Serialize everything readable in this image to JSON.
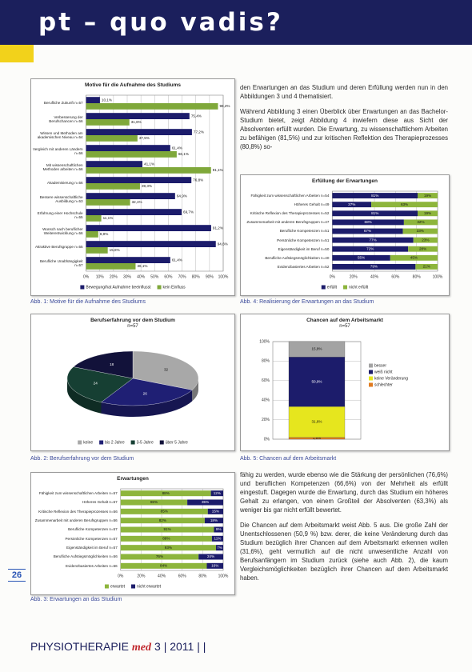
{
  "header": {
    "title": "pt – quo vadis?"
  },
  "text": {
    "intro": [
      "den Erwartungen an das Studium und deren Erfüllung werden nun in den Abbildungen 3 und 4 thematisiert.",
      "Während Abbildung 3 einen Überblick über Erwartungen an das Bachelor-Studium bietet, zeigt Abbildung 4 inwiefern diese aus Sicht der Absolventen erfüllt wurden. Die Erwartung, zu wissenschaftlichem Arbeiten zu befähigen (81,5%) und zur kritischen Reflektion des Therapieprozesses (80,8%) so-"
    ],
    "main": [
      "fähig zu werden, wurde ebenso wie die Stärkung der persönlichen (76,6%) und beruflichen Kompetenzen (66,6%) von der Mehrheit als erfüllt eingestuft. Dagegen wurde die Erwartung, durch das Studium ein höheres Gehalt zu erlangen, von einem Großteil der Absolventen (63,3%) als weniger bis gar nicht erfüllt bewertet.",
      "Die Chancen auf dem Arbeitsmarkt weist Abb. 5 aus. Die große Zahl der Unentschlossenen (50,9 %) bzw. derer, die keine Veränderung durch das Studium bezüglich ihrer Chancen auf dem Arbeitsmarkt erkennen wollen (31,6%), geht vermutlich auf die nicht unwesentliche Anzahl von Berufsanfängern im Studium zurück (siehe auch Abb. 2), die kaum Vergleichsmöglichkeiten bezüglich ihrer Chancen auf dem Arbeitsmarkt haben."
    ]
  },
  "page_number": "26",
  "footer": {
    "magazine": "PHYSIOTHERAPIE",
    "brand": "med",
    "issue": "3 | 2011 | |"
  },
  "chart_data": [
    {
      "type": "hbar",
      "title": "Motive für die Aufnahme des Studiums",
      "caption": "Abb. 1: Motive für die Aufnahme des Studiums",
      "categories": [
        "Berufliche Zukunft n=57",
        "Verbesserung der Berufschancen n=56",
        "Wissen und Methoden am akademischen Niveau n=54",
        "Vergleich mit anderen Ländern n=56",
        "Mit wissenschaftlichen Methoden arbeiten n=56",
        "Akademisierung n=56",
        "Bessere wissenschaftliche Ausbildung n=53",
        "Erfahrung einer Hochschule n=55",
        "Wunsch nach beruflicher Weiterentwicklung n=56",
        "Attraktive Berufsgruppe n=55",
        "Berufliche Unabhängigkeit n=57"
      ],
      "series": [
        {
          "name": "Bewegung/hat Aufnahme beeinflusst",
          "color": "#1c1c6b",
          "values": [
            10.1,
            75.4,
            77.2,
            61.4,
            41.1,
            76.8,
            64.9,
            69.7,
            91.2,
            94.6,
            61.4
          ],
          "value_labels": [
            "10,1%",
            "75,4%",
            "77,2%",
            "61,4%",
            "41,1%",
            "76,8%",
            "64,9%",
            "69,7%",
            "91,2%",
            "94,6%",
            "61,4%"
          ]
        },
        {
          "name": "kein Einfluss",
          "color": "#7fa83a",
          "values": [
            96.2,
            31.6,
            37.5,
            66.1,
            91.1,
            39.3,
            32.1,
            11.1,
            8.9,
            15.8,
            36.1
          ],
          "value_labels": [
            "96,2%",
            "31,6%",
            "37,5%",
            "66,1%",
            "91,1%",
            "39,3%",
            "32,1%",
            "11,1%",
            "8,9%",
            "15,8%",
            "36,1%"
          ]
        }
      ],
      "xlim": [
        0,
        100
      ],
      "xticks": [
        {
          "value": 0,
          "label": "0%"
        },
        {
          "value": 10,
          "label": "10%"
        },
        {
          "value": 20,
          "label": "20%"
        },
        {
          "value": 30,
          "label": "30%"
        },
        {
          "value": 40,
          "label": "40%"
        },
        {
          "value": 50,
          "label": "50%"
        },
        {
          "value": 60,
          "label": "60%"
        },
        {
          "value": 70,
          "label": "70%"
        },
        {
          "value": 80,
          "label": "80%"
        },
        {
          "value": 90,
          "label": "90%"
        },
        {
          "value": 100,
          "label": "100%"
        }
      ],
      "grid": true
    },
    {
      "type": "pie",
      "title": "Berufserfahrung vor dem Studium",
      "subtitle": "n=57",
      "caption": "Abb. 2: Berufserfahrung vor dem Studium",
      "categories": [
        "keine",
        "bis 2 Jahre",
        "3-5 Jahre",
        "über 5 Jahre"
      ],
      "values": [
        32,
        26,
        24,
        18
      ],
      "colors": [
        "#a8a8a8",
        "#1f1f74",
        "#163f33",
        "#12123a"
      ]
    },
    {
      "type": "stacked_hbar",
      "title": "Erwartungen",
      "caption": "Abb. 3: Erwartungen an das Studium",
      "categories": [
        "Fähigkeit zum wissenschaftlichen Arbeiten n=57",
        "Höheres Gehalt n=57",
        "Kritische Reflexion des Therapieprozesses n=56",
        "Zusammenarbeit mit anderen Berufsgruppen n=56",
        "Berufliche Kompetenzen n=57",
        "Persönliche Kompetenzen n=57",
        "Eigenständigkeit im Beruf n=57",
        "Berufliche Aufstiegsmöglichkeiten n=56",
        "Evidenzbasiertes Arbeiten n=56"
      ],
      "series": [
        {
          "name": "erwartet",
          "color": "#8db53c",
          "values": [
            88,
            65,
            85,
            82,
            91,
            89,
            93,
            76,
            84
          ],
          "value_labels": [
            "88%",
            "65%",
            "85%",
            "82%",
            "91%",
            "89%",
            "93%",
            "76%",
            "84%"
          ]
        },
        {
          "name": "nicht erwartet",
          "color": "#1c1c6b",
          "values": [
            12,
            35,
            15,
            18,
            9,
            11,
            7,
            24,
            16
          ],
          "value_labels": [
            "12%",
            "35%",
            "15%",
            "18%",
            "9%",
            "11%",
            "7%",
            "24%",
            "16%"
          ]
        }
      ],
      "xlim": [
        0,
        100
      ],
      "xticks": [
        {
          "value": 0,
          "label": "0%"
        },
        {
          "value": 20,
          "label": "20%"
        },
        {
          "value": 40,
          "label": "40%"
        },
        {
          "value": 60,
          "label": "60%"
        },
        {
          "value": 80,
          "label": "80%"
        },
        {
          "value": 100,
          "label": "100%"
        }
      ],
      "grid": true
    },
    {
      "type": "stacked_hbar",
      "title": "Erfüllung der Erwartungen",
      "caption": "Abb. 4: Realisierung der Erwartungen an das Studium",
      "categories": [
        "Fähigkeit zum wissenschaftlichen Arbeiten n=54",
        "Höheres Gehalt n=49",
        "Kritische Reflexion des Therapieprozesses n=52",
        "Zusammenarbeit mit anderen Berufsgruppen n=47",
        "Berufliche Kompetenzen n=51",
        "Persönliche Kompetenzen n=51",
        "Eigenständigkeit im Beruf n=50",
        "Berufliche Aufstiegsmöglichkeiten n=40",
        "Evidenzbasiertes Arbeiten n=52"
      ],
      "series": [
        {
          "name": "erfüllt",
          "color": "#1c1c6b",
          "values": [
            81,
            37,
            81,
            68,
            67,
            77,
            72,
            55,
            79
          ],
          "value_labels": [
            "81%",
            "37%",
            "81%",
            "68%",
            "67%",
            "77%",
            "72%",
            "55%",
            "79%"
          ]
        },
        {
          "name": "nicht erfüllt",
          "color": "#8db53c",
          "values": [
            19,
            63,
            19,
            32,
            33,
            23,
            28,
            45,
            21
          ],
          "value_labels": [
            "19%",
            "63%",
            "19%",
            "32%",
            "33%",
            "23%",
            "28%",
            "45%",
            "21%"
          ]
        }
      ],
      "xlim": [
        0,
        100
      ],
      "xticks": [
        {
          "value": 0,
          "label": "0%"
        },
        {
          "value": 20,
          "label": "20%"
        },
        {
          "value": 40,
          "label": "40%"
        },
        {
          "value": 60,
          "label": "60%"
        },
        {
          "value": 80,
          "label": "80%"
        },
        {
          "value": 100,
          "label": "100%"
        }
      ],
      "grid": true
    },
    {
      "type": "stacked_bar",
      "title": "Chancen auf dem Arbeitsmarkt",
      "subtitle": "n=57",
      "caption": "Abb. 5: Chancen auf dem Arbeitsmarkt",
      "categories": [
        null
      ],
      "series": [
        {
          "name": "schlechter",
          "color": "#e07b20",
          "values": [
            1.8
          ],
          "value_labels": [
            "1,8%"
          ]
        },
        {
          "name": "keine Veränderung",
          "color": "#e6e61e",
          "values": [
            31.6
          ],
          "value_labels": [
            "31,6%"
          ]
        },
        {
          "name": "weiß nicht",
          "color": "#1c1c6b",
          "values": [
            50.9
          ],
          "value_labels": [
            "50,9%"
          ]
        },
        {
          "name": "besser",
          "color": "#a3a3a3",
          "values": [
            15.8
          ],
          "value_labels": [
            "15,8%"
          ]
        }
      ],
      "ylim": [
        0,
        100
      ],
      "yticks": [
        {
          "value": 0,
          "label": "0%"
        },
        {
          "value": 20,
          "label": "20%"
        },
        {
          "value": 40,
          "label": "40%"
        },
        {
          "value": 60,
          "label": "60%"
        },
        {
          "value": 80,
          "label": "80%"
        },
        {
          "value": 100,
          "label": "100%"
        }
      ],
      "grid": true
    }
  ]
}
